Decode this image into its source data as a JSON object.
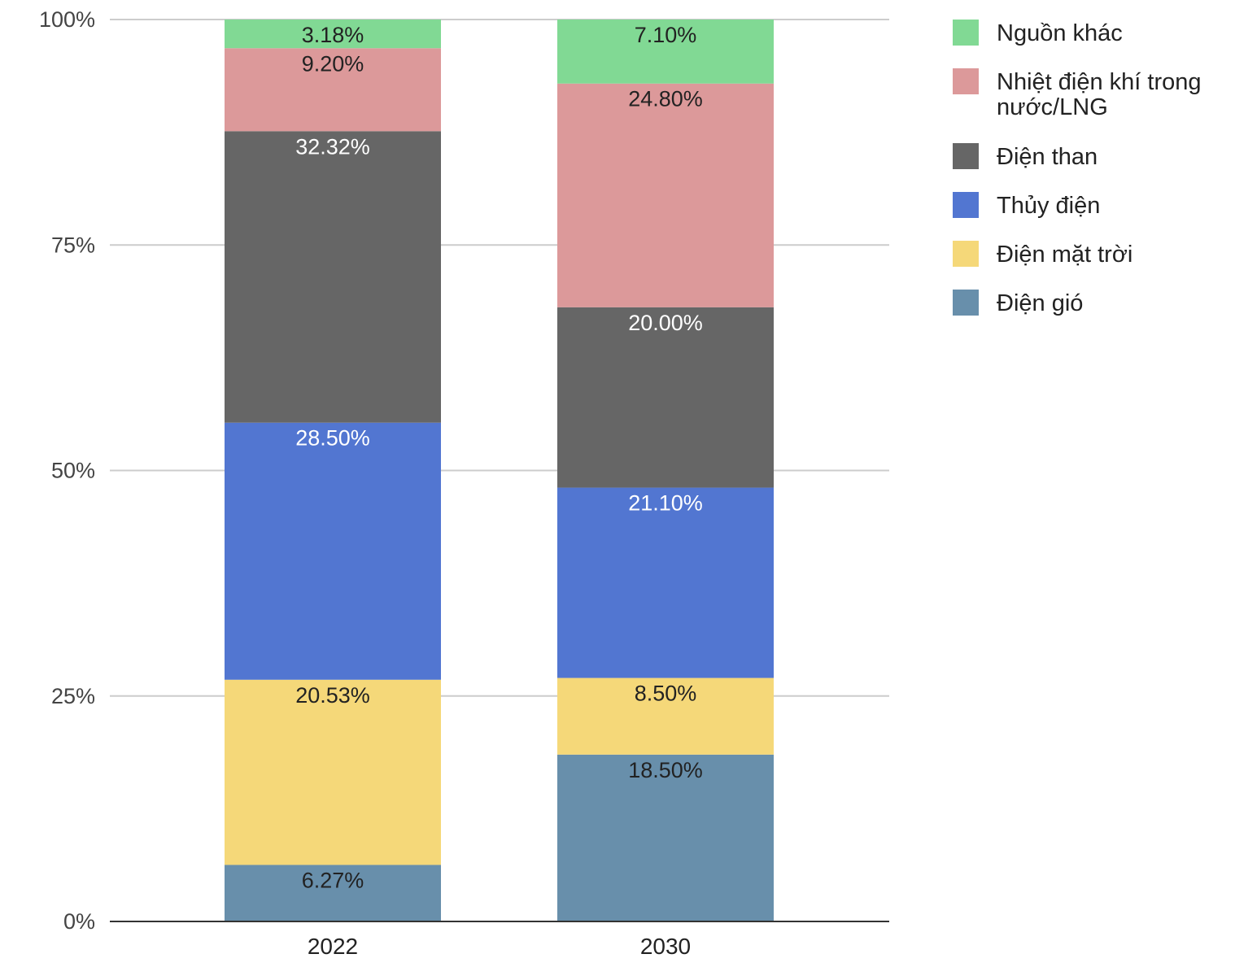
{
  "chart_data": {
    "type": "bar",
    "stacked": true,
    "percent_stacked": true,
    "categories": [
      "2022",
      "2030"
    ],
    "ylim": [
      0,
      100
    ],
    "yticks": [
      {
        "value": 0,
        "label": "0%"
      },
      {
        "value": 25,
        "label": "25%"
      },
      {
        "value": 50,
        "label": "50%"
      },
      {
        "value": 75,
        "label": "75%"
      },
      {
        "value": 100,
        "label": "100%"
      }
    ],
    "grid": true,
    "legend_position": "right",
    "series": [
      {
        "name": "Điện gió",
        "color": "#688fab",
        "label_color": "#222222",
        "values": [
          6.27,
          18.5
        ],
        "labels": [
          "6.27%",
          "18.50%"
        ]
      },
      {
        "name": "Điện mặt trời",
        "color": "#f5d879",
        "label_color": "#222222",
        "values": [
          20.53,
          8.5
        ],
        "labels": [
          "20.53%",
          "8.50%"
        ]
      },
      {
        "name": "Thủy điện",
        "color": "#5276d1",
        "label_color": "#ffffff",
        "values": [
          28.5,
          21.1
        ],
        "labels": [
          "28.50%",
          "21.10%"
        ]
      },
      {
        "name": "Điện than",
        "color": "#666666",
        "label_color": "#ffffff",
        "values": [
          32.32,
          20.0
        ],
        "labels": [
          "32.32%",
          "20.00%"
        ]
      },
      {
        "name": "Nhiệt điện khí trong nước/LNG",
        "color": "#dc999a",
        "label_color": "#222222",
        "values": [
          9.2,
          24.8
        ],
        "labels": [
          "9.20%",
          "24.80%"
        ]
      },
      {
        "name": "Nguồn khác",
        "color": "#81d994",
        "label_color": "#222222",
        "values": [
          3.18,
          7.1
        ],
        "labels": [
          "3.18%",
          "7.10%"
        ]
      }
    ]
  }
}
